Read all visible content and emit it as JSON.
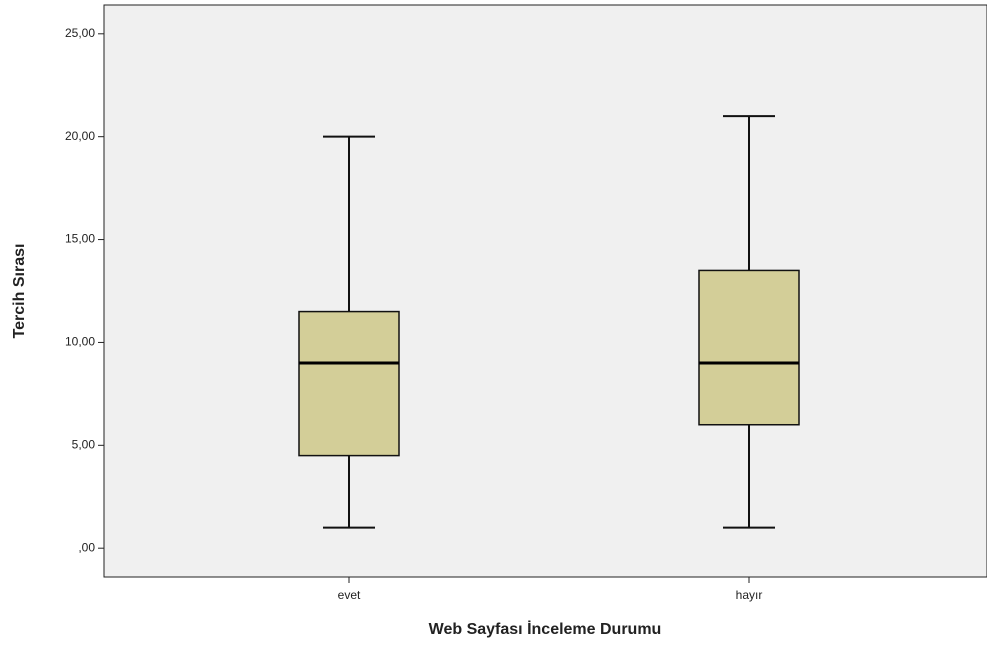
{
  "chart_data": {
    "type": "box",
    "x_label": "Web Sayfası İnceleme Durumu",
    "y_label": "Tercih Sırası",
    "categories": [
      "evet",
      "hayır"
    ],
    "boxes": [
      {
        "min": 1,
        "q1": 4.5,
        "median": 9,
        "q3": 11.5,
        "max": 20
      },
      {
        "min": 1,
        "q1": 6,
        "median": 9,
        "q3": 13.5,
        "max": 21
      }
    ],
    "color": "#d3ce98",
    "ylim": [
      -1.4,
      26.4
    ],
    "yticks": [
      {
        "value": 0,
        "label": ",00"
      },
      {
        "value": 5,
        "label": "5,00"
      },
      {
        "value": 10,
        "label": "10,00"
      },
      {
        "value": 15,
        "label": "15,00"
      },
      {
        "value": 20,
        "label": "20,00"
      },
      {
        "value": 25,
        "label": "25,00"
      }
    ]
  }
}
